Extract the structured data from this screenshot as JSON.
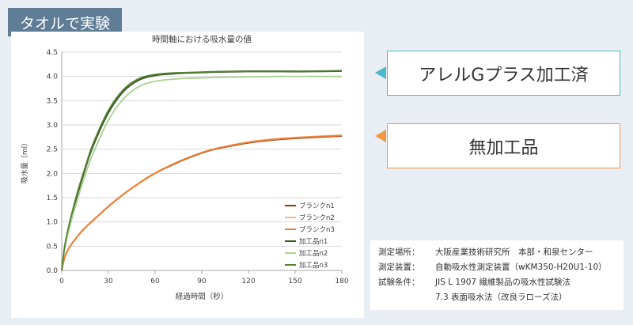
{
  "tag": {
    "label": "タオルで実験"
  },
  "callouts": [
    {
      "label": "アレルGプラス加工済",
      "color": "#4cb9c6"
    },
    {
      "label": "無加工品",
      "color": "#f29742"
    }
  ],
  "conditions": [
    {
      "key": "測定場所：",
      "value": "大阪産業技術研究所　本部・和泉センター"
    },
    {
      "key": "測定装置：",
      "value": "自動吸水性測定装置（wKM350-H20U1-10）"
    },
    {
      "key": "試験条件：",
      "value": "JIS L 1907 繊維製品の吸水性試験法"
    },
    {
      "key": "",
      "value": "7.3 表面吸水法（改良ラローズ法）"
    }
  ],
  "chart_data": {
    "type": "line",
    "title": "時間軸における吸水量の値",
    "xlabel": "経過時間（秒）",
    "ylabel": "吸水量（ml）",
    "xlim": [
      0,
      180
    ],
    "ylim": [
      0,
      4.5
    ],
    "x_ticks": [
      0,
      30,
      60,
      90,
      120,
      150,
      180
    ],
    "y_ticks": [
      0.0,
      0.5,
      1.0,
      1.5,
      2.0,
      2.5,
      3.0,
      3.5,
      4.0,
      4.5
    ],
    "grid": "horizontal",
    "legend_position": "bottom-right",
    "x": [
      0,
      2,
      5,
      10,
      15,
      20,
      30,
      40,
      50,
      60,
      70,
      80,
      90,
      100,
      120,
      140,
      160,
      180
    ],
    "series": [
      {
        "name": "ブランクn1",
        "color": "#8b3a14",
        "values": [
          0,
          0.28,
          0.48,
          0.7,
          0.88,
          1.03,
          1.32,
          1.58,
          1.8,
          2.0,
          2.16,
          2.3,
          2.42,
          2.51,
          2.63,
          2.7,
          2.74,
          2.77
        ]
      },
      {
        "name": "ブランクn2",
        "color": "#f4b183",
        "values": [
          0,
          0.27,
          0.47,
          0.69,
          0.87,
          1.02,
          1.31,
          1.57,
          1.8,
          2.0,
          2.17,
          2.31,
          2.43,
          2.52,
          2.65,
          2.72,
          2.76,
          2.79
        ]
      },
      {
        "name": "ブランクn3",
        "color": "#ed7d31",
        "values": [
          0,
          0.28,
          0.48,
          0.7,
          0.88,
          1.03,
          1.32,
          1.58,
          1.81,
          2.01,
          2.17,
          2.31,
          2.43,
          2.52,
          2.64,
          2.71,
          2.75,
          2.78
        ]
      },
      {
        "name": "加工品n1",
        "color": "#375623",
        "values": [
          0,
          0.5,
          0.95,
          1.55,
          2.08,
          2.55,
          3.25,
          3.7,
          3.93,
          4.02,
          4.05,
          4.07,
          4.08,
          4.09,
          4.1,
          4.1,
          4.1,
          4.11
        ]
      },
      {
        "name": "加工品n2",
        "color": "#a9d18e",
        "values": [
          0,
          0.46,
          0.88,
          1.45,
          1.96,
          2.4,
          3.1,
          3.55,
          3.8,
          3.9,
          3.94,
          3.96,
          3.97,
          3.98,
          3.99,
          4.0,
          4.0,
          4.0
        ]
      },
      {
        "name": "加工品n3",
        "color": "#548235",
        "values": [
          0,
          0.52,
          0.98,
          1.6,
          2.12,
          2.6,
          3.3,
          3.74,
          3.96,
          4.04,
          4.07,
          4.08,
          4.09,
          4.1,
          4.11,
          4.11,
          4.11,
          4.12
        ]
      }
    ]
  }
}
